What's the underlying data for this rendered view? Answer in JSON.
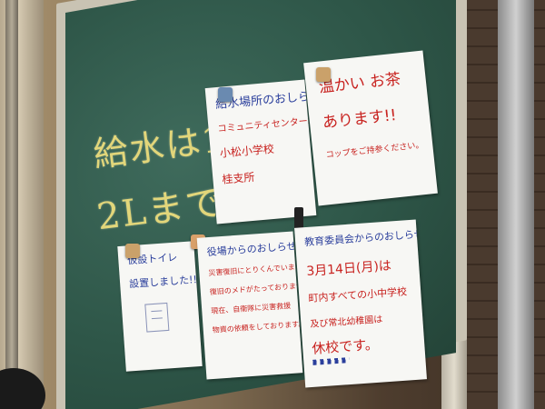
{
  "chalkboard": {
    "line1": "給水は1人",
    "line2": "2Lまで"
  },
  "notices": {
    "water_station": {
      "title": "給水場所のおしらせ",
      "lines": [
        "コミュニティセンター城里",
        "小松小学校",
        "桂支所"
      ]
    },
    "tea": {
      "lines": [
        "温かい お茶",
        "あります!!",
        "コップをご持参ください。"
      ]
    },
    "toilet": {
      "lines": [
        "仮設トイレ",
        "設置しました!!"
      ]
    },
    "office": {
      "title": "役場からのおしらせ",
      "lines": [
        "災害復旧にとりくんでいますが",
        "復旧のメドがたっておりません。",
        "現在、自衛隊に災害救援",
        "物資の依頼をしております。"
      ]
    },
    "education": {
      "title": "教育委員会からのおしらせ",
      "lines": [
        "3月14日(月)は",
        "町内すべての小中学校",
        "及び常北幼稚園は",
        "休校です。"
      ]
    }
  }
}
